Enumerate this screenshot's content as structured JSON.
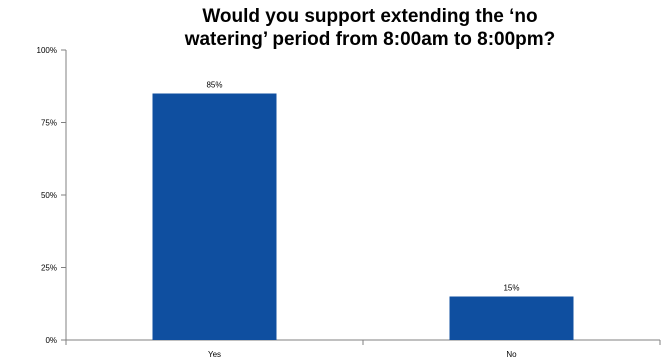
{
  "chart_data": {
    "type": "bar",
    "title_lines": [
      "Would you support  extending the ‘no",
      "watering’ period from 8:00am  to 8:00pm?"
    ],
    "categories": [
      "Yes",
      "No"
    ],
    "values": [
      85,
      15
    ],
    "data_labels": [
      "85%",
      "15%"
    ],
    "ylim": [
      0,
      100
    ],
    "y_ticks": [
      0,
      25,
      50,
      75,
      100
    ],
    "y_tick_labels": [
      "0%",
      "25%",
      "50%",
      "75%",
      "100%"
    ],
    "grid": false,
    "legend": "none",
    "bar_color": "#0F4FA0"
  }
}
